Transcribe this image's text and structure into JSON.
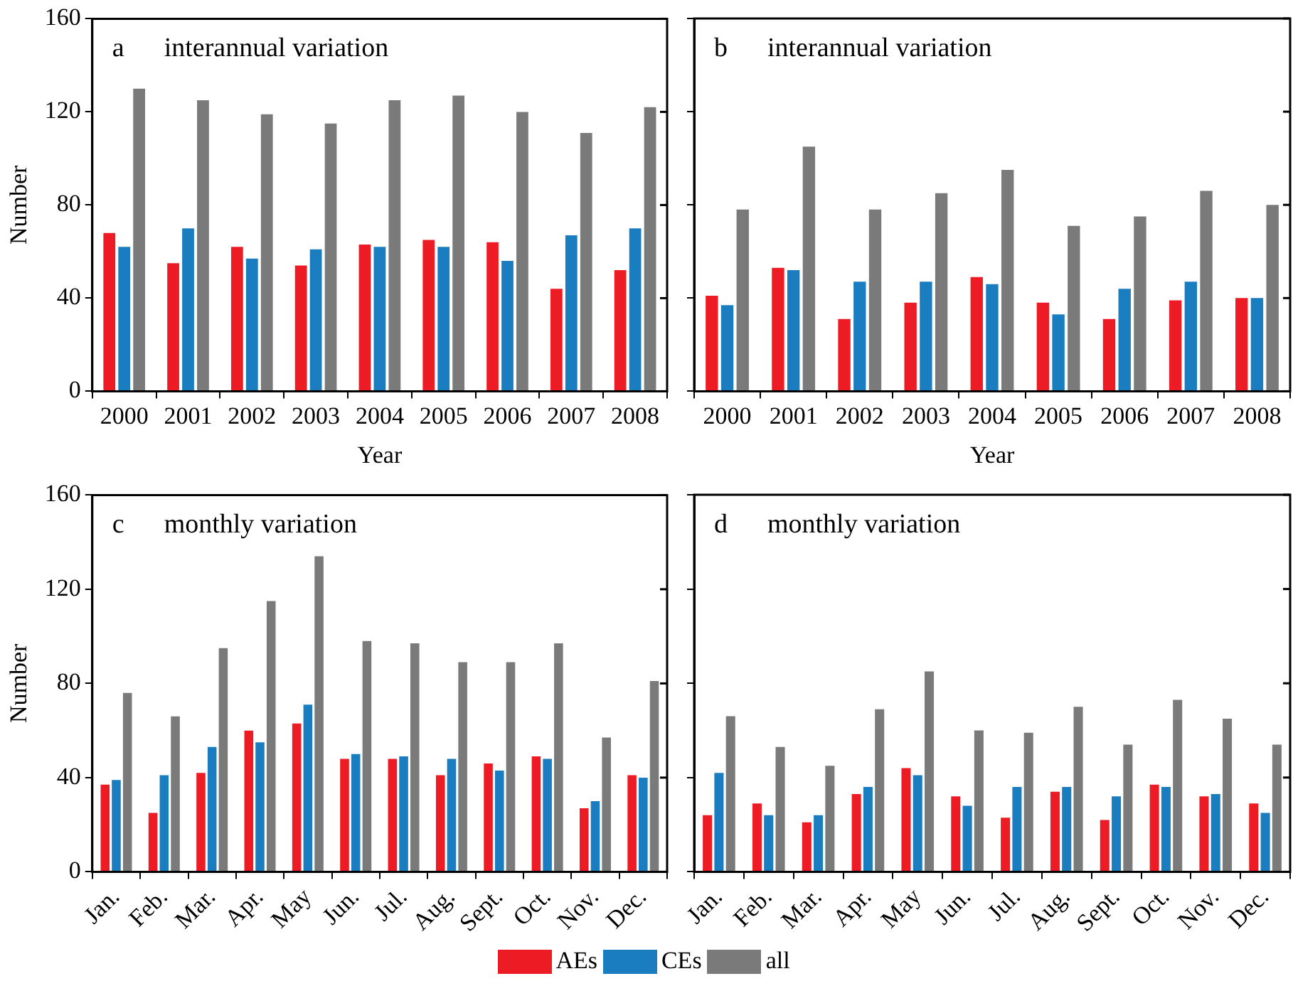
{
  "chart_data": [
    {
      "type": "bar",
      "title": "interannual variation",
      "annotations": [
        "a"
      ],
      "xlabel": "Year",
      "ylabel": "Number",
      "categories": [
        "2000",
        "2001",
        "2002",
        "2003",
        "2004",
        "2005",
        "2006",
        "2007",
        "2008"
      ],
      "series": [
        {
          "color": "#ed1c24",
          "values": [
            68,
            55,
            62,
            54,
            63,
            65,
            64,
            44,
            52
          ]
        },
        {
          "color": "#1a7dc0",
          "values": [
            62,
            70,
            57,
            61,
            62,
            62,
            56,
            67,
            70
          ]
        },
        {
          "color": "#7a7a7a",
          "values": [
            130,
            125,
            119,
            115,
            125,
            127,
            120,
            111,
            122
          ]
        }
      ],
      "ylim": [
        0,
        160
      ],
      "yticks": [
        0,
        40,
        80,
        120,
        160
      ],
      "grid": false,
      "legend": false
    },
    {
      "type": "bar",
      "title": "interannual variation",
      "annotations": [
        "b"
      ],
      "xlabel": "Year",
      "categories": [
        "2000",
        "2001",
        "2002",
        "2003",
        "2004",
        "2005",
        "2006",
        "2007",
        "2008"
      ],
      "series": [
        {
          "color": "#ed1c24",
          "values": [
            41,
            53,
            31,
            38,
            49,
            38,
            31,
            39,
            40
          ]
        },
        {
          "color": "#1a7dc0",
          "values": [
            37,
            52,
            47,
            47,
            46,
            33,
            44,
            47,
            40
          ]
        },
        {
          "color": "#7a7a7a",
          "values": [
            78,
            105,
            78,
            85,
            95,
            71,
            75,
            86,
            80
          ]
        }
      ],
      "ylim": [
        0,
        160
      ],
      "yticks": [
        0,
        40,
        80,
        120,
        160
      ],
      "tick_labels": "x",
      "grid": false,
      "legend": false
    },
    {
      "type": "bar",
      "title": "monthly variation",
      "annotations": [
        "c"
      ],
      "ylabel": "Number",
      "categories": [
        "Jan.",
        "Feb.",
        "Mar.",
        "Apr.",
        "May",
        "Jun.",
        "Jul.",
        "Aug.",
        "Sept.",
        "Oct.",
        "Nov.",
        "Dec."
      ],
      "series": [
        {
          "color": "#ed1c24",
          "values": [
            37,
            25,
            42,
            60,
            63,
            48,
            48,
            41,
            46,
            49,
            27,
            41
          ]
        },
        {
          "color": "#1a7dc0",
          "values": [
            39,
            41,
            53,
            55,
            71,
            50,
            49,
            48,
            43,
            48,
            30,
            40
          ]
        },
        {
          "color": "#7a7a7a",
          "values": [
            76,
            66,
            95,
            115,
            134,
            98,
            97,
            89,
            89,
            97,
            57,
            81
          ]
        }
      ],
      "ylim": [
        0,
        160
      ],
      "yticks": [
        0,
        40,
        80,
        120,
        160
      ],
      "grid": false,
      "legend": false
    },
    {
      "type": "bar",
      "title": "monthly variation",
      "annotations": [
        "d"
      ],
      "categories": [
        "Jan.",
        "Feb.",
        "Mar.",
        "Apr.",
        "May",
        "Jun.",
        "Jul.",
        "Aug.",
        "Sept.",
        "Oct.",
        "Nov.",
        "Dec."
      ],
      "series": [
        {
          "name": "AEs",
          "color": "#ed1c24",
          "values": [
            24,
            29,
            21,
            33,
            44,
            32,
            23,
            34,
            22,
            37,
            32,
            29
          ]
        },
        {
          "name": "CEs",
          "color": "#1a7dc0",
          "values": [
            42,
            24,
            24,
            36,
            41,
            28,
            36,
            36,
            32,
            36,
            33,
            25
          ]
        },
        {
          "name": "all",
          "color": "#7a7a7a",
          "values": [
            66,
            53,
            45,
            69,
            85,
            60,
            59,
            70,
            54,
            73,
            65,
            54
          ]
        }
      ],
      "ylim": [
        0,
        160
      ],
      "yticks": [
        0,
        40,
        80,
        120,
        160
      ],
      "tick_labels": "x",
      "grid": false,
      "legend": "bottom"
    }
  ]
}
